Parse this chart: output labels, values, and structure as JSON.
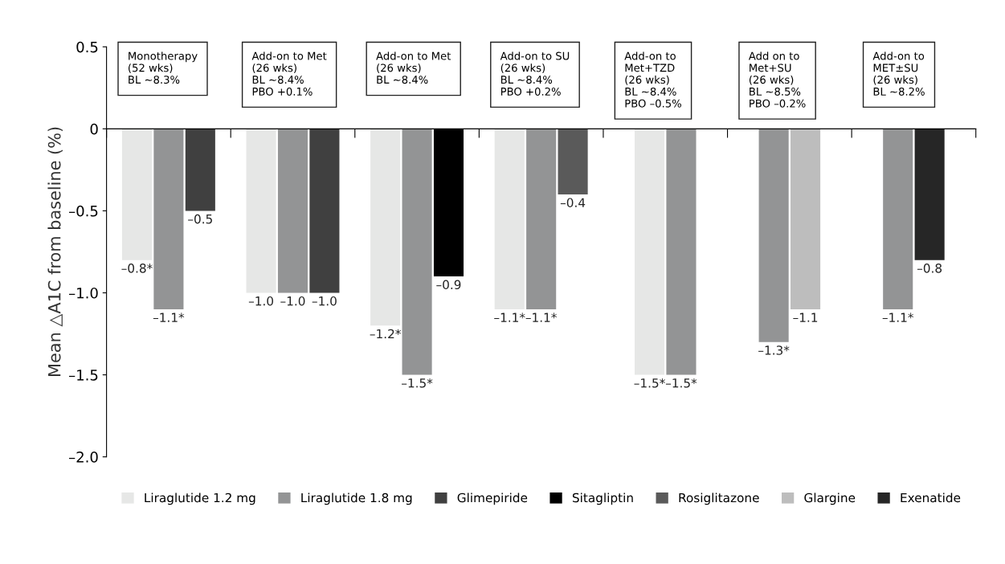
{
  "chart_data": {
    "type": "bar",
    "ylabel": "Mean △A1C from baseline (%)",
    "categories": [
      "Monotherapy\n(52 wks)\nBL ~8.3%",
      "Add-on to Met\n(26 wks)\nBL ~8.4%\nPBO +0.1%",
      "Add-on to Met\n(26 wks)\nBL ~8.4%",
      "Add-on to SU\n(26 wks)\nBL ~8.4%\nPBO +0.2%",
      "Add-on to\nMet+TZD\n(26 wks)\nBL ~8.4%\nPBO –0.5%",
      "Add on to\nMet+SU\n(26 wks)\nBL ~8.5%\nPBO –0.2%",
      "Add-on to\nMET±SU\n(26 wks)\nBL ~8.2%"
    ],
    "series": [
      {
        "name": "Liraglutide 1.2 mg",
        "color": "#e6e7e6",
        "values": [
          -0.8,
          -1.0,
          -1.2,
          -1.1,
          -1.5,
          null,
          null
        ],
        "value_labels": [
          "–0.8*",
          "–1.0",
          "–1.2*",
          "–1.1*",
          "–1.5*",
          null,
          null
        ]
      },
      {
        "name": "Liraglutide 1.8 mg",
        "color": "#939495",
        "values": [
          -1.1,
          -1.0,
          -1.5,
          -1.1,
          -1.5,
          -1.3,
          -1.1
        ],
        "value_labels": [
          "–1.1*",
          "–1.0",
          "–1.5*",
          "–1.1*",
          "–1.5*",
          "–1.3*",
          "–1.1*"
        ]
      },
      {
        "name": "Glimepiride",
        "color": "#404040",
        "values": [
          -0.5,
          -1.0,
          null,
          null,
          null,
          null,
          null
        ],
        "value_labels": [
          "–0.5",
          "–1.0",
          null,
          null,
          null,
          null,
          null
        ]
      },
      {
        "name": "Sitagliptin",
        "color": "#000000",
        "values": [
          null,
          null,
          -0.9,
          null,
          null,
          null,
          null
        ],
        "value_labels": [
          null,
          null,
          "–0.9",
          null,
          null,
          null,
          null
        ]
      },
      {
        "name": "Rosiglitazone",
        "color": "#5a5a5a",
        "values": [
          null,
          null,
          null,
          -0.4,
          null,
          null,
          null
        ],
        "value_labels": [
          null,
          null,
          null,
          "–0.4",
          null,
          null,
          null
        ]
      },
      {
        "name": "Glargine",
        "color": "#bdbdbd",
        "values": [
          null,
          null,
          null,
          null,
          null,
          -1.1,
          null
        ],
        "value_labels": [
          null,
          null,
          null,
          null,
          null,
          "–1.1",
          null
        ]
      },
      {
        "name": "Exenatide",
        "color": "#262626",
        "values": [
          null,
          null,
          null,
          null,
          null,
          null,
          -0.8
        ],
        "value_labels": [
          null,
          null,
          null,
          null,
          null,
          null,
          "–0.8"
        ]
      }
    ],
    "ylim": [
      -2.0,
      0.5
    ],
    "yticks": [
      {
        "value": 0.5,
        "label": "0.5"
      },
      {
        "value": 0,
        "label": "0"
      },
      {
        "value": -0.5,
        "label": "–0.5"
      },
      {
        "value": -1.0,
        "label": "–1.0"
      },
      {
        "value": -1.5,
        "label": "–1.5"
      },
      {
        "value": -2.0,
        "label": "–2.0"
      }
    ],
    "grid": false,
    "legend": "bottom"
  }
}
